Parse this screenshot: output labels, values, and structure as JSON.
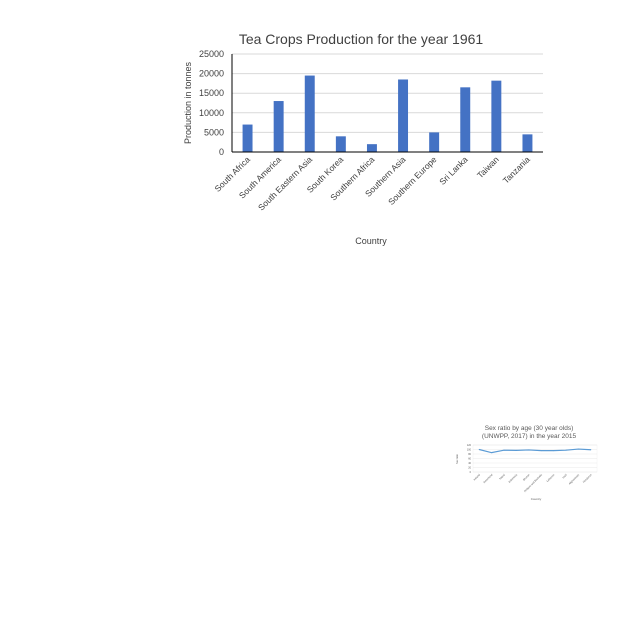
{
  "chart_data": [
    {
      "type": "bar",
      "title": "Tea Crops  Production for the year 1961",
      "xlabel": "Country",
      "ylabel": "Production in tonnes",
      "categories": [
        "South Africa",
        "South America",
        "South Eastern Asia",
        "South Korea",
        "Southern Africa",
        "Southern Asia",
        "Southern Europe",
        "Sri Lanka",
        "Taiwan",
        "Tanzania"
      ],
      "values": [
        7000,
        13000,
        19500,
        4000,
        2000,
        18500,
        5000,
        16500,
        18200,
        4500
      ],
      "yticks": [
        "0",
        "5000",
        "10000",
        "15000",
        "20000",
        "25000"
      ],
      "ylim": [
        0,
        25000
      ],
      "grid": true,
      "bar_color": "#4472c4"
    },
    {
      "type": "line",
      "title_lines": [
        "Sex ratio by age (30 year olds)",
        "(UNWPP, 2017) in the year 2015"
      ],
      "xlabel": "Country",
      "ylabel": "Sex ratio",
      "categories": [
        "Ireland",
        "Swaziland",
        "Nepal",
        "Indonesia",
        "Bhutan",
        "Antigua and Barbuda",
        "Lebanon",
        "Haiti",
        "Afghanistan",
        "Honduras"
      ],
      "values": [
        100,
        86,
        97,
        96,
        98,
        95,
        95,
        97,
        102,
        99
      ],
      "yticks": [
        "0",
        "20",
        "40",
        "60",
        "80",
        "100",
        "120"
      ],
      "ylim": [
        0,
        120
      ],
      "grid": true,
      "line_color": "#5b9bd5"
    }
  ]
}
